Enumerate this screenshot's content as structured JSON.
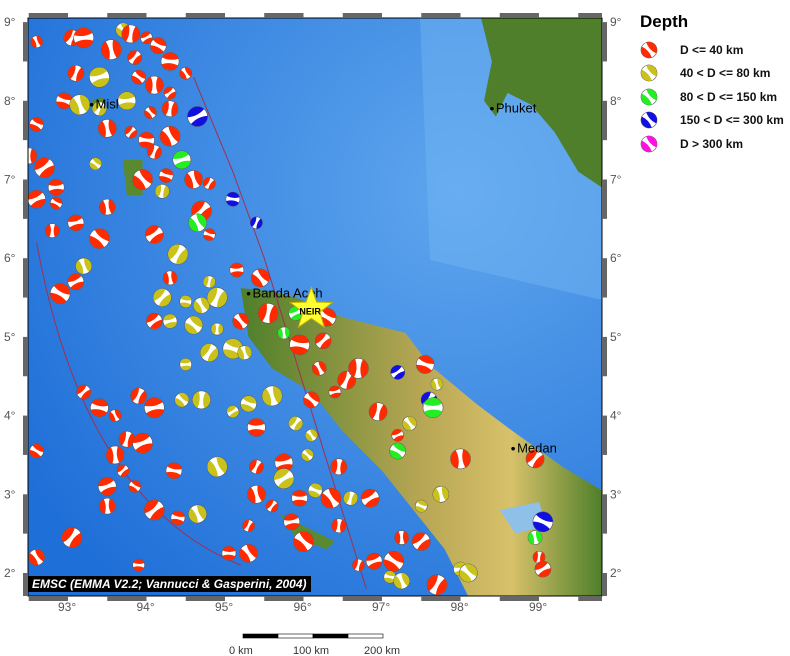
{
  "map": {
    "lon_ticks": [
      "93°",
      "94°",
      "95°",
      "96°",
      "97°",
      "98°",
      "99°"
    ],
    "lat_ticks": [
      "9°",
      "8°",
      "7°",
      "6°",
      "5°",
      "4°",
      "3°",
      "2°"
    ],
    "places": [
      {
        "name": "Misl",
        "lon": 93.3,
        "lat": 7.95
      },
      {
        "name": "Phuket",
        "lon": 98.4,
        "lat": 7.9
      },
      {
        "name": "Banda Aceh",
        "lon": 95.3,
        "lat": 5.55
      },
      {
        "name": "Medan",
        "lon": 98.67,
        "lat": 3.58
      }
    ],
    "epicenter": {
      "label": "NEIR",
      "lon": 96.1,
      "lat": 5.35
    },
    "credit": "EMSC (EMMA V2.2; Vannucci & Gasperini, 2004)",
    "colors": {
      "ocean": "#2f7fe0",
      "land_low": "#4f7f2a",
      "land_high": "#d8c16a"
    },
    "events": [
      [
        92.6,
        8.75,
        0
      ],
      [
        93.05,
        8.8,
        0
      ],
      [
        93.2,
        8.8,
        0
      ],
      [
        93.7,
        8.9,
        1
      ],
      [
        93.8,
        8.85,
        0
      ],
      [
        94.0,
        8.8,
        0
      ],
      [
        94.15,
        8.7,
        0
      ],
      [
        93.55,
        8.65,
        0
      ],
      [
        93.85,
        8.55,
        0
      ],
      [
        94.3,
        8.5,
        0
      ],
      [
        94.5,
        8.35,
        0
      ],
      [
        93.1,
        8.35,
        0
      ],
      [
        93.4,
        8.3,
        1
      ],
      [
        93.9,
        8.3,
        0
      ],
      [
        94.1,
        8.2,
        0
      ],
      [
        94.3,
        8.1,
        0
      ],
      [
        92.95,
        8.0,
        0
      ],
      [
        93.15,
        7.95,
        1
      ],
      [
        93.4,
        7.9,
        1
      ],
      [
        93.75,
        8.0,
        1
      ],
      [
        94.05,
        7.85,
        0
      ],
      [
        94.3,
        7.9,
        0
      ],
      [
        94.65,
        7.8,
        3
      ],
      [
        92.6,
        7.7,
        0
      ],
      [
        93.5,
        7.65,
        0
      ],
      [
        93.8,
        7.6,
        0
      ],
      [
        94.0,
        7.5,
        0
      ],
      [
        94.3,
        7.55,
        0
      ],
      [
        94.1,
        7.35,
        0
      ],
      [
        94.45,
        7.25,
        2
      ],
      [
        93.35,
        7.2,
        1
      ],
      [
        92.5,
        7.3,
        0
      ],
      [
        92.7,
        7.15,
        0
      ],
      [
        94.25,
        7.05,
        0
      ],
      [
        94.6,
        7.0,
        0
      ],
      [
        94.8,
        6.95,
        0
      ],
      [
        92.85,
        6.9,
        0
      ],
      [
        93.95,
        7.0,
        0
      ],
      [
        94.2,
        6.85,
        1
      ],
      [
        92.6,
        6.75,
        0
      ],
      [
        92.85,
        6.7,
        0
      ],
      [
        93.5,
        6.65,
        0
      ],
      [
        94.7,
        6.6,
        0
      ],
      [
        95.1,
        6.75,
        3
      ],
      [
        94.65,
        6.45,
        2
      ],
      [
        95.4,
        6.45,
        3
      ],
      [
        93.1,
        6.45,
        0
      ],
      [
        93.4,
        6.25,
        0
      ],
      [
        92.8,
        6.35,
        0
      ],
      [
        94.1,
        6.3,
        0
      ],
      [
        94.8,
        6.3,
        0
      ],
      [
        93.2,
        5.9,
        1
      ],
      [
        94.4,
        6.05,
        1
      ],
      [
        95.15,
        5.85,
        0
      ],
      [
        95.45,
        5.75,
        0
      ],
      [
        94.8,
        5.7,
        1
      ],
      [
        93.1,
        5.7,
        0
      ],
      [
        92.9,
        5.55,
        0
      ],
      [
        94.3,
        5.75,
        0
      ],
      [
        94.2,
        5.5,
        1
      ],
      [
        94.5,
        5.45,
        1
      ],
      [
        94.7,
        5.4,
        1
      ],
      [
        94.9,
        5.5,
        1
      ],
      [
        94.3,
        5.2,
        1
      ],
      [
        94.6,
        5.15,
        1
      ],
      [
        94.9,
        5.1,
        1
      ],
      [
        94.1,
        5.2,
        0
      ],
      [
        95.1,
        4.85,
        1
      ],
      [
        95.25,
        4.8,
        1
      ],
      [
        94.8,
        4.8,
        1
      ],
      [
        94.5,
        4.65,
        1
      ],
      [
        95.2,
        5.2,
        0
      ],
      [
        95.55,
        5.3,
        0
      ],
      [
        95.9,
        5.3,
        2
      ],
      [
        96.3,
        5.25,
        0
      ],
      [
        95.75,
        5.05,
        2
      ],
      [
        96.25,
        4.95,
        0
      ],
      [
        95.95,
        4.9,
        0
      ],
      [
        96.2,
        4.6,
        0
      ],
      [
        96.55,
        4.45,
        0
      ],
      [
        96.4,
        4.3,
        0
      ],
      [
        96.1,
        4.2,
        0
      ],
      [
        96.7,
        4.6,
        0
      ],
      [
        97.2,
        4.55,
        3
      ],
      [
        97.55,
        4.65,
        0
      ],
      [
        97.7,
        4.4,
        1
      ],
      [
        97.6,
        4.2,
        3
      ],
      [
        97.65,
        4.1,
        2
      ],
      [
        97.35,
        3.9,
        1
      ],
      [
        96.95,
        4.05,
        0
      ],
      [
        97.2,
        3.75,
        0
      ],
      [
        97.2,
        3.55,
        2
      ],
      [
        98.0,
        3.45,
        0
      ],
      [
        93.2,
        4.3,
        0
      ],
      [
        93.4,
        4.1,
        0
      ],
      [
        93.6,
        4.0,
        0
      ],
      [
        93.9,
        4.25,
        0
      ],
      [
        94.1,
        4.1,
        0
      ],
      [
        94.45,
        4.2,
        1
      ],
      [
        94.7,
        4.2,
        1
      ],
      [
        95.1,
        4.05,
        1
      ],
      [
        95.3,
        4.15,
        1
      ],
      [
        95.6,
        4.25,
        1
      ],
      [
        95.9,
        3.9,
        1
      ],
      [
        95.4,
        3.85,
        0
      ],
      [
        96.1,
        3.75,
        1
      ],
      [
        93.75,
        3.7,
        0
      ],
      [
        93.95,
        3.65,
        0
      ],
      [
        92.6,
        3.55,
        0
      ],
      [
        93.6,
        3.5,
        0
      ],
      [
        93.7,
        3.3,
        0
      ],
      [
        94.35,
        3.3,
        0
      ],
      [
        94.9,
        3.35,
        1
      ],
      [
        95.4,
        3.35,
        0
      ],
      [
        95.75,
        3.4,
        0
      ],
      [
        96.05,
        3.5,
        1
      ],
      [
        96.45,
        3.35,
        0
      ],
      [
        95.75,
        3.2,
        1
      ],
      [
        96.15,
        3.05,
        1
      ],
      [
        95.4,
        3.0,
        0
      ],
      [
        95.6,
        2.85,
        0
      ],
      [
        95.95,
        2.95,
        0
      ],
      [
        96.35,
        2.95,
        0
      ],
      [
        96.6,
        2.95,
        1
      ],
      [
        93.5,
        3.1,
        0
      ],
      [
        93.85,
        3.1,
        0
      ],
      [
        93.5,
        2.85,
        0
      ],
      [
        94.1,
        2.8,
        0
      ],
      [
        94.4,
        2.7,
        0
      ],
      [
        94.65,
        2.75,
        1
      ],
      [
        95.3,
        2.6,
        0
      ],
      [
        95.85,
        2.65,
        0
      ],
      [
        96.0,
        2.4,
        0
      ],
      [
        96.45,
        2.6,
        0
      ],
      [
        96.85,
        2.95,
        0
      ],
      [
        97.5,
        2.85,
        1
      ],
      [
        97.75,
        3.0,
        1
      ],
      [
        93.05,
        2.45,
        0
      ],
      [
        95.05,
        2.25,
        0
      ],
      [
        95.3,
        2.25,
        0
      ],
      [
        96.7,
        2.1,
        0
      ],
      [
        96.9,
        2.15,
        0
      ],
      [
        97.15,
        2.15,
        0
      ],
      [
        97.25,
        2.45,
        0
      ],
      [
        97.5,
        2.4,
        0
      ],
      [
        97.1,
        1.95,
        1
      ],
      [
        97.25,
        1.9,
        1
      ],
      [
        97.7,
        1.85,
        0
      ],
      [
        98.0,
        2.05,
        1
      ],
      [
        98.1,
        2.0,
        1
      ],
      [
        99.0,
        2.2,
        0
      ],
      [
        99.05,
        2.05,
        0
      ],
      [
        99.05,
        2.65,
        3
      ],
      [
        98.95,
        2.45,
        2
      ],
      [
        98.95,
        3.45,
        0
      ],
      [
        93.9,
        2.1,
        0
      ],
      [
        92.6,
        2.2,
        0
      ]
    ]
  },
  "legend": {
    "title": "Depth",
    "items": [
      {
        "label": "D <= 40 km",
        "color": "#ff2a00"
      },
      {
        "label": "40 < D <= 80 km",
        "color": "#c8c21a"
      },
      {
        "label": "80 < D <= 150 km",
        "color": "#22ee22"
      },
      {
        "label": "150 < D <= 300 km",
        "color": "#1010e0"
      },
      {
        "label": "D > 300 km",
        "color": "#ff10e0"
      }
    ]
  },
  "scale_bar": {
    "labels": [
      "0 km",
      "100 km",
      "200 km"
    ]
  }
}
